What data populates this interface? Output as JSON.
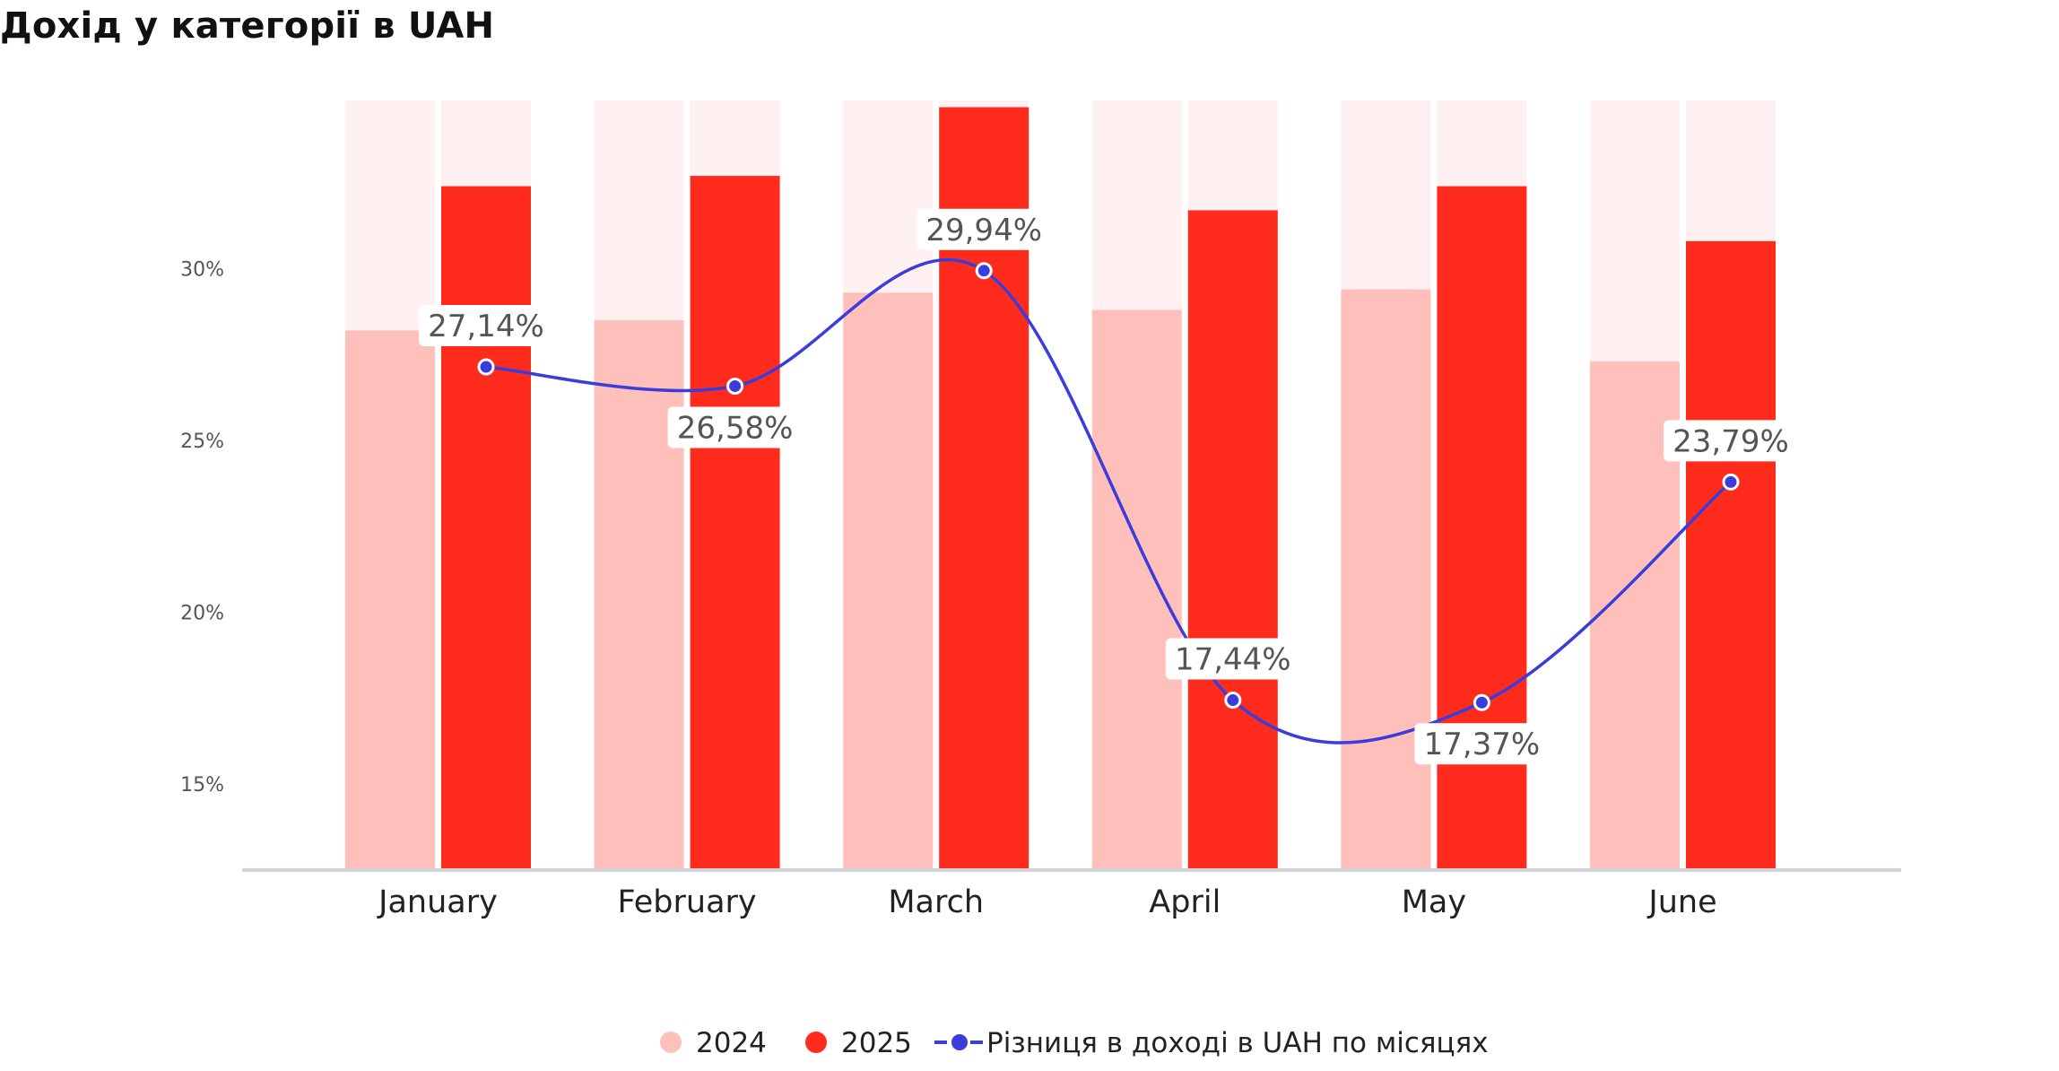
{
  "chart_data": {
    "type": "bar",
    "title": "Дохід у категорії в UAH",
    "categories": [
      "January",
      "February",
      "March",
      "April",
      "May",
      "June"
    ],
    "ylim": [
      12.5,
      35
    ],
    "y_ticks": [
      15,
      20,
      25,
      30
    ],
    "y_tick_labels": [
      "15%",
      "20%",
      "25%",
      "30%"
    ],
    "series": [
      {
        "name": "2024",
        "kind": "bar",
        "color": "#ffc0bc",
        "values": [
          28.2,
          28.5,
          29.3,
          28.8,
          29.4,
          27.3
        ]
      },
      {
        "name": "2025",
        "kind": "bar",
        "color": "#ff2b1c",
        "values": [
          32.4,
          32.7,
          34.7,
          31.7,
          32.4,
          30.8
        ]
      },
      {
        "name": "Різниця в доході в UAH по місяцях",
        "kind": "line",
        "color": "#3a3ddb",
        "values": [
          27.14,
          26.58,
          29.94,
          17.44,
          17.37,
          23.79
        ],
        "labels": [
          "27,14%",
          "26,58%",
          "29,94%",
          "17,44%",
          "17,37%",
          "23,79%"
        ]
      }
    ],
    "background_bar_color": "#fff0f1",
    "grid": false,
    "legend_position": "bottom-center"
  }
}
